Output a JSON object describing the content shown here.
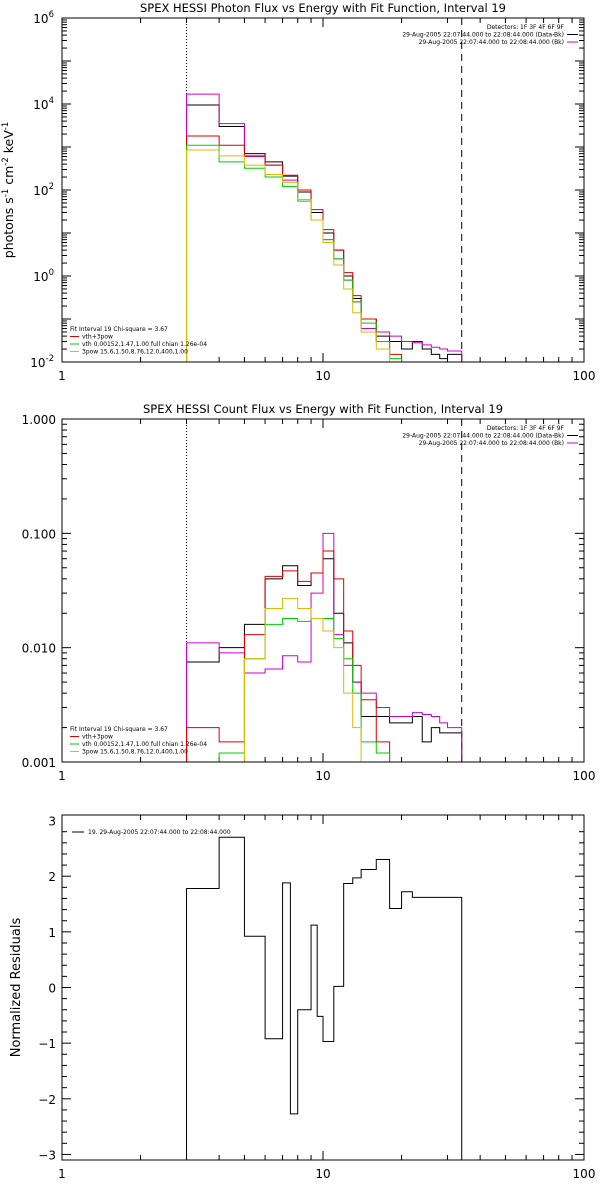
{
  "chart_data": [
    {
      "type": "line",
      "title": "SPEX HESSI Photon Flux vs Energy with Fit Function, Interval 19",
      "ylabel_parts": [
        "photons s",
        "-1",
        " cm",
        "-2",
        " keV",
        "-1"
      ],
      "x_scale": "log",
      "y_scale": "log",
      "xlim": [
        1,
        100
      ],
      "ylim": [
        0.01,
        1000000
      ],
      "x_tick_labels": [
        {
          "value": 1,
          "label": "1"
        },
        {
          "value": 10,
          "label": "10"
        },
        {
          "value": 100,
          "label": "100"
        }
      ],
      "y_tick_labels": [
        {
          "value": 0.01,
          "label": "10",
          "exp": "-2"
        },
        {
          "value": 1,
          "label": "10",
          "exp": "0"
        },
        {
          "value": 100,
          "label": "10",
          "exp": "2"
        },
        {
          "value": 10000,
          "label": "10",
          "exp": "4"
        },
        {
          "value": 1000000,
          "label": "10",
          "exp": "6"
        }
      ],
      "vlines": [
        {
          "x": 3,
          "style": "dotted"
        },
        {
          "x": 34,
          "style": "dashed"
        }
      ],
      "legend_right": [
        {
          "text": "Detectors: 1F 3F 4F 6F 9F",
          "color": "#000000"
        },
        {
          "text": "29-Aug-2005 22:07:44.000 to 22:08:44.000 (Data-Bk)",
          "color": "#000000"
        },
        {
          "text": "29-Aug-2005 22:07:44.000 to 22:08:44.000 (Bk)",
          "color": "#cc00cc"
        }
      ],
      "legend_left": [
        {
          "text": "Fit Interval 19   Chi-square = 3.67",
          "color": "#000000"
        },
        {
          "text": "vth+3pow",
          "color": "#dd0000"
        },
        {
          "text": "vth 0.00152,1.47,1.00  full chian 1.26e-04",
          "color": "#00cc00"
        },
        {
          "text": "3pow 15.6,1.50,8.76,12.0,400,1.00",
          "color": "#ddbb00"
        }
      ],
      "edges": [
        3,
        4,
        5,
        6,
        7,
        8,
        9,
        10,
        11,
        12,
        13,
        14,
        16,
        18,
        20,
        22,
        24,
        26,
        28,
        30,
        34
      ],
      "series": [
        {
          "name": "29-Aug-2005 22:07:44.000 to 22:08:44.000 (Data-Bk)",
          "color": "#000000",
          "values": [
            9500,
            3000,
            700,
            450,
            210,
            90,
            30,
            10,
            4,
            1,
            0.3,
            0.1,
            0.04,
            0.03,
            0.02,
            0.03,
            0.02,
            0.015,
            0.012,
            0.015
          ]
        },
        {
          "name": "29-Aug-2005 22:07:44.000 to 22:08:44.000 (Bk)",
          "color": "#cc00cc",
          "values": [
            17000,
            3500,
            600,
            380,
            170,
            60,
            20,
            7,
            2.5,
            0.8,
            0.25,
            0.06,
            0.05,
            0.04,
            0.03,
            0.028,
            0.025,
            0.022,
            0.02,
            0.018
          ]
        },
        {
          "name": "vth+3pow",
          "color": "#dd0000",
          "values": [
            1800,
            1100,
            620,
            380,
            220,
            100,
            35,
            12,
            4,
            1.2,
            0.35,
            0.1,
            0.03,
            0.015
          ]
        },
        {
          "name": "vth",
          "color": "#00cc00",
          "values": [
            1100,
            450,
            320,
            200,
            120,
            55,
            20,
            7,
            2.5,
            0.8,
            0.25,
            0.08,
            0.03,
            0.012
          ]
        },
        {
          "name": "3pow",
          "color": "#ddbb00",
          "values": [
            850,
            620,
            380,
            230,
            150,
            60,
            20,
            6,
            1.8,
            0.5,
            0.14,
            0.05,
            0.02,
            0.01
          ]
        }
      ]
    },
    {
      "type": "line",
      "title": "SPEX HESSI Count Flux vs Energy with Fit Function, Interval 19",
      "ylabel": "",
      "x_scale": "log",
      "y_scale": "log",
      "xlim": [
        1,
        100
      ],
      "ylim": [
        0.001,
        1
      ],
      "x_tick_labels": [
        {
          "value": 1,
          "label": "1"
        },
        {
          "value": 10,
          "label": "10"
        },
        {
          "value": 100,
          "label": "100"
        }
      ],
      "y_tick_labels": [
        {
          "value": 0.001,
          "label": "0.001"
        },
        {
          "value": 0.01,
          "label": "0.010"
        },
        {
          "value": 0.1,
          "label": "0.100"
        },
        {
          "value": 1,
          "label": "1.000"
        }
      ],
      "vlines": [
        {
          "x": 3,
          "style": "dotted"
        },
        {
          "x": 34,
          "style": "dashed"
        }
      ],
      "legend_right": [
        {
          "text": "Detectors: 1F 3F 4F 6F 9F",
          "color": "#000000"
        },
        {
          "text": "29-Aug-2005 22:07:44.000 to 22:08:44.000 (Data-Bk)",
          "color": "#000000"
        },
        {
          "text": "29-Aug-2005 22:07:44.000 to 22:08:44.000 (Bk)",
          "color": "#cc00cc"
        }
      ],
      "legend_left": [
        {
          "text": "Fit Interval 19   Chi-square = 3.67",
          "color": "#000000"
        },
        {
          "text": "vth+3pow",
          "color": "#dd0000"
        },
        {
          "text": "vth 0.00152,1.47,1.00  full chian 1.26e-04",
          "color": "#00cc00"
        },
        {
          "text": "3pow 15.6,1.50,8.76,12.0,400,1.00",
          "color": "#ddbb00"
        }
      ],
      "edges": [
        3,
        4,
        5,
        6,
        7,
        8,
        9,
        10,
        11,
        12,
        13,
        14,
        16,
        18,
        20,
        22,
        24,
        26,
        28,
        30,
        34
      ],
      "series": [
        {
          "name": "29-Aug-2005 22:07:44.000 to 22:08:44.000 (Data-Bk)",
          "color": "#000000",
          "values": [
            0.0075,
            0.01,
            0.016,
            0.04,
            0.052,
            0.035,
            0.045,
            0.06,
            0.02,
            0.011,
            0.005,
            0.0025,
            0.0025,
            0.0022,
            0.0022,
            0.0025,
            0.0015,
            0.002,
            0.0018,
            0.0018
          ]
        },
        {
          "name": "29-Aug-2005 22:07:44.000 to 22:08:44.000 (Bk)",
          "color": "#cc00cc",
          "values": [
            0.011,
            0.009,
            0.006,
            0.0065,
            0.0085,
            0.0075,
            0.03,
            0.1,
            0.013,
            0.007,
            0.005,
            0.004,
            0.003,
            0.0025,
            0.0025,
            0.0027,
            0.0026,
            0.0025,
            0.0022,
            0.002
          ]
        },
        {
          "name": "vth+3pow",
          "color": "#dd0000",
          "values": [
            0.002,
            0.0015,
            0.013,
            0.042,
            0.047,
            0.038,
            0.045,
            0.07,
            0.04,
            0.014,
            0.007,
            0.0035,
            0.0015,
            0.0009
          ]
        },
        {
          "name": "vth",
          "color": "#00cc00",
          "values": [
            0.0009,
            0.0012,
            0.008,
            0.016,
            0.018,
            0.017,
            0.018,
            0.018,
            0.012,
            0.008,
            0.004,
            0.0015,
            0.0012,
            0.0009
          ]
        },
        {
          "name": "3pow",
          "color": "#ddbb00",
          "values": [
            0.0007,
            0.0009,
            0.008,
            0.022,
            0.027,
            0.022,
            0.018,
            0.014,
            0.01,
            0.004,
            0.002,
            0.001,
            0.0009
          ]
        }
      ]
    },
    {
      "type": "line",
      "title": "",
      "ylabel": "Normalized Residuals",
      "x_scale": "log",
      "y_scale": "linear",
      "xlim": [
        1,
        100
      ],
      "ylim": [
        -3.1,
        3.1
      ],
      "x_tick_labels": [
        {
          "value": 1,
          "label": "1"
        },
        {
          "value": 10,
          "label": "10"
        },
        {
          "value": 100,
          "label": "100"
        }
      ],
      "y_tick_labels": [
        {
          "value": -3,
          "label": "−3"
        },
        {
          "value": -2,
          "label": "−2"
        },
        {
          "value": -1,
          "label": "−1"
        },
        {
          "value": 0,
          "label": "0"
        },
        {
          "value": 1,
          "label": "1"
        },
        {
          "value": 2,
          "label": "2"
        },
        {
          "value": 3,
          "label": "3"
        }
      ],
      "legend_right": [],
      "legend_left": [],
      "legend_top_left": "19. 29-Aug-2005 22:07:44.000 to 22:08:44.000",
      "edges": [
        3,
        4,
        5,
        6,
        7,
        7.5,
        8,
        9,
        9.5,
        10,
        11,
        12,
        13,
        14,
        16,
        18,
        20,
        22,
        24,
        26,
        28,
        30,
        34
      ],
      "series": [
        {
          "name": "19. 29-Aug-2005 22:07:44.000 to 22:08:44.000",
          "color": "#000000",
          "values": [
            1.78,
            2.7,
            0.92,
            -0.92,
            1.88,
            -2.27,
            -0.4,
            1.12,
            -0.52,
            -0.97,
            0.02,
            1.87,
            1.97,
            2.12,
            2.3,
            1.42,
            1.72,
            1.62,
            1.62,
            1.62,
            1.62,
            1.62
          ],
          "drop_to_bottom_at_ends": true
        }
      ]
    }
  ]
}
